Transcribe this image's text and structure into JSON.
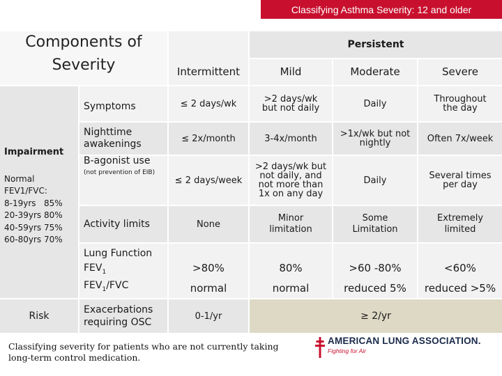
{
  "slide_title": "Classifying Asthma Severity: 12 and older",
  "header": {
    "components": "Components of Severity",
    "persistent": "Persistent",
    "intermittent": "Intermittent",
    "mild": "Mild",
    "moderate": "Moderate",
    "severe": "Severe"
  },
  "groups": {
    "impairment": "Impairment",
    "normal_fev_title": "Normal FEV1/FVC:",
    "normal_fev_rows": [
      "8-19yrs   85%",
      "20-39yrs 80%",
      "40-59yrs 75%",
      "60-80yrs 70%"
    ],
    "risk": "Risk"
  },
  "rows": {
    "symptoms": {
      "label": "Symptoms",
      "intermittent": "≤ 2 days/wk",
      "mild": ">2 days/wk but not daily",
      "moderate": "Daily",
      "severe": "Throughout the day"
    },
    "nighttime": {
      "label": "Nighttime awakenings",
      "intermittent": "≤ 2x/month",
      "mild": "3-4x/month",
      "moderate": ">1x/wk but not nightly",
      "severe": "Often 7x/week"
    },
    "b_agonist": {
      "label": "B-agonist use",
      "sub": "(not prevention of EIB)",
      "intermittent": "≤ 2 days/week",
      "mild": ">2 days/wk but not daily, and not more than 1x on any day",
      "moderate": "Daily",
      "severe": "Several times per day"
    },
    "activity": {
      "label": "Activity limits",
      "intermittent": "None",
      "mild": "Minor limitation",
      "moderate": "Some Limitation",
      "severe": "Extremely limited"
    },
    "lung": {
      "label": "Lung Function",
      "fev1": "FEV",
      "fev1_sub": "1",
      "fev1fvc": "FEV",
      "fev1fvc_sub": "1",
      "fev1fvc_suffix": "/FVC",
      "intermittent_fev1": ">80%",
      "mild_fev1": "80%",
      "moderate_fev1": ">60 -80%",
      "severe_fev1": "<60%",
      "intermittent_ratio": "normal",
      "mild_ratio": "normal",
      "moderate_ratio": "reduced 5%",
      "severe_ratio": "reduced >5%"
    },
    "exacerbations": {
      "label": "Exacerbations requiring OSC",
      "intermittent": "0-1/yr",
      "persistent": "≥ 2/yr"
    }
  },
  "footer_note": "Classifying severity for patients who are not currently taking long-term control medication.",
  "logo": {
    "name": "AMERICAN LUNG ASSOCIATION.",
    "tagline": "Fighting for Air",
    "colors": {
      "cross": "#c8102e",
      "text": "#1a2a4a"
    }
  },
  "colors": {
    "title_bar": "#c8102e",
    "risk_band": "#ddd9c4"
  }
}
